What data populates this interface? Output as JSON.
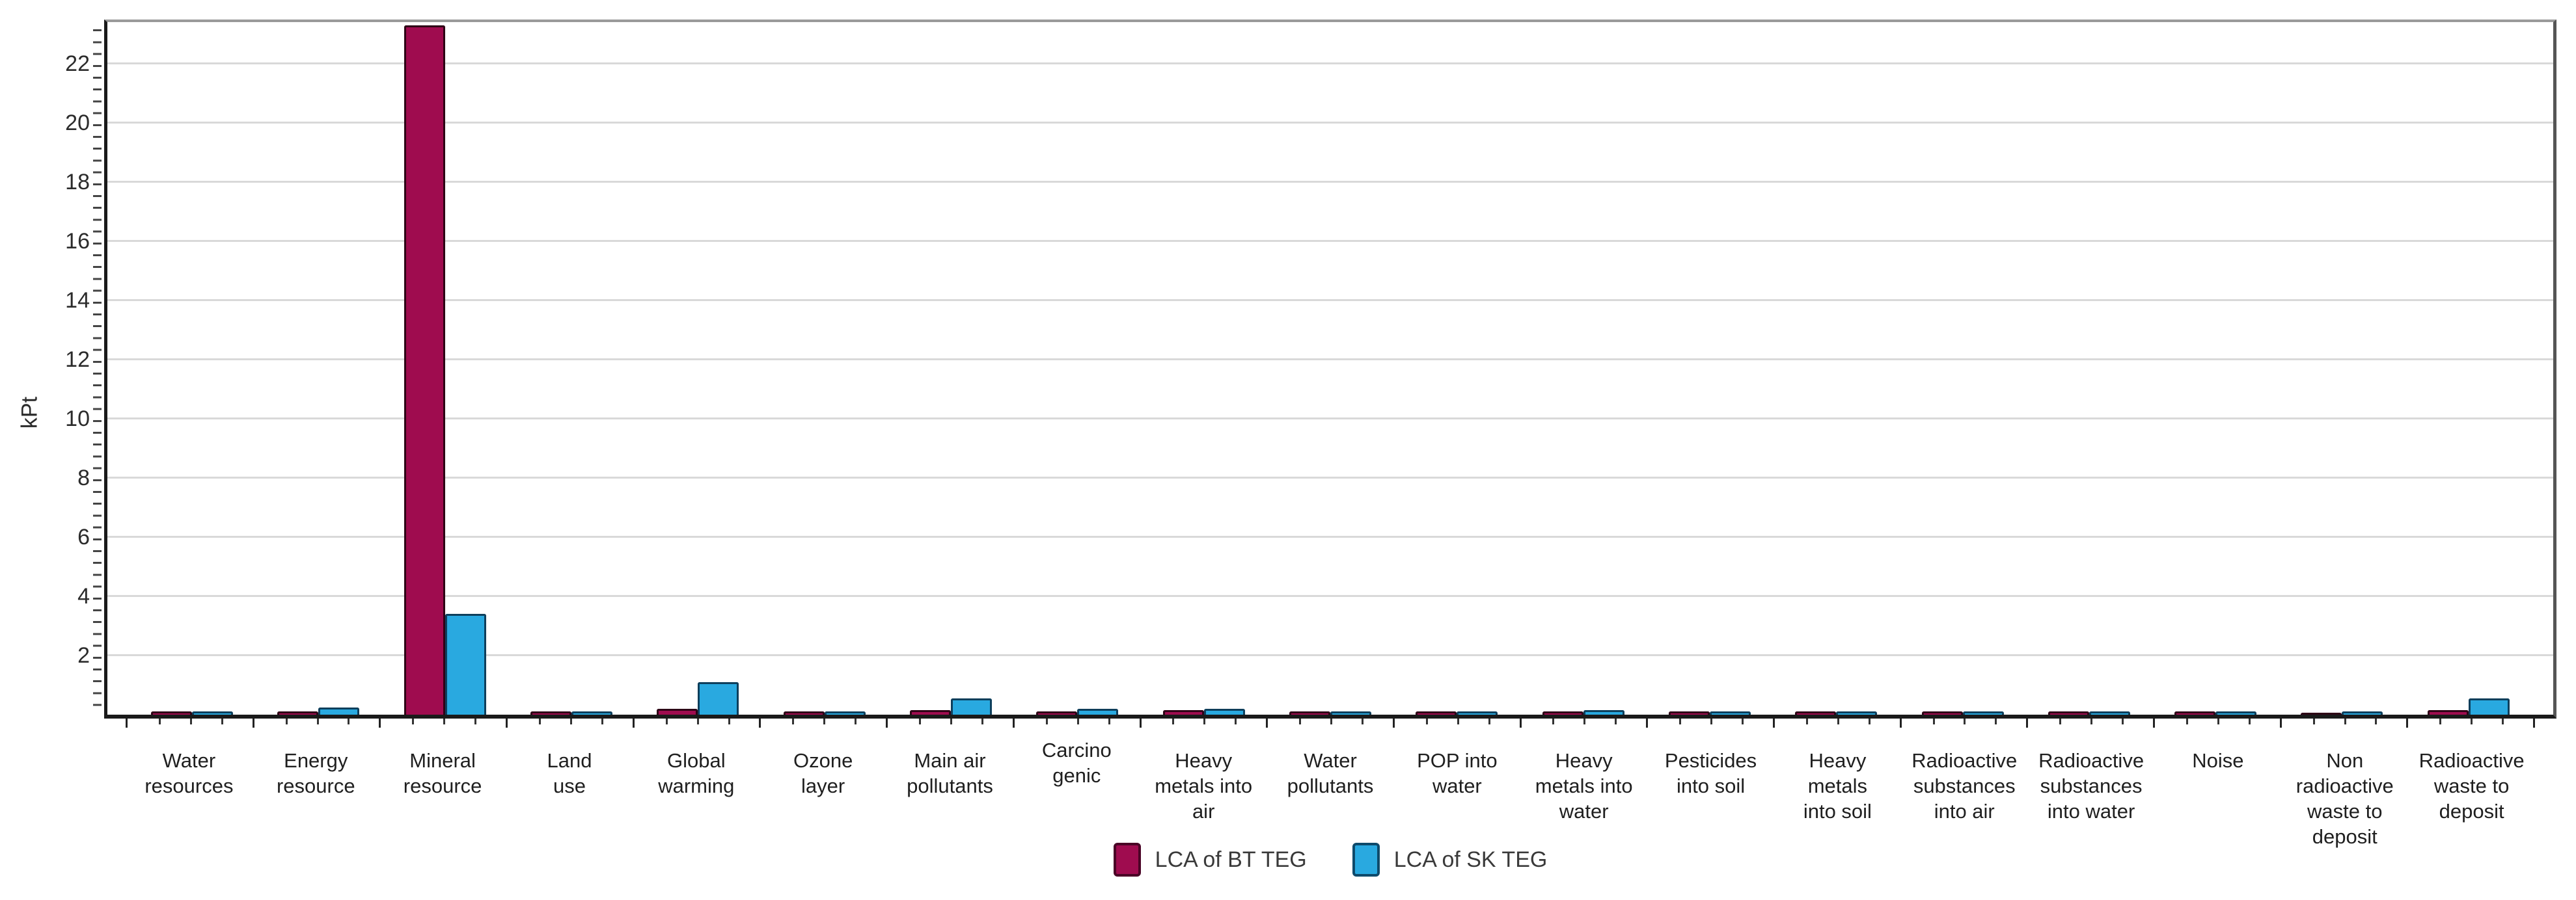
{
  "chart_data": {
    "type": "bar",
    "title": "",
    "xlabel": "",
    "ylabel": "kPt",
    "ylim": [
      0,
      23.4
    ],
    "y_ticks": [
      2,
      4,
      6,
      8,
      10,
      12,
      14,
      16,
      18,
      20,
      22
    ],
    "grid": true,
    "legend_position": "bottom-center",
    "categories": [
      "Water resources",
      "Energy resource",
      "Mineral resource",
      "Land use",
      "Global warming",
      "Ozone layer",
      "Main air pollutants",
      "Carcino genic",
      "Heavy metals into air",
      "Water pollutants",
      "POP into water",
      "Heavy metals into water",
      "Pesticides into soil",
      "Heavy metals into soil",
      "Radioactive substances into air",
      "Radioactive substances into water",
      "Noise",
      "Non radioactive waste to deposit",
      "Radioactive waste to deposit"
    ],
    "category_label_lines": [
      [
        "Water",
        "resources"
      ],
      [
        "Energy",
        "resource"
      ],
      [
        "Mineral",
        "resource"
      ],
      [
        "Land",
        "use"
      ],
      [
        "Global",
        "warming"
      ],
      [
        "Ozone",
        "layer"
      ],
      [
        "Main air",
        "pollutants"
      ],
      [
        "Carcino",
        "genic"
      ],
      [
        "Heavy",
        "metals into",
        "air"
      ],
      [
        "Water",
        "pollutants"
      ],
      [
        "POP into",
        "water"
      ],
      [
        "Heavy",
        "metals into",
        "water"
      ],
      [
        "Pesticides",
        "into soil"
      ],
      [
        "Heavy",
        "metals",
        "into soil"
      ],
      [
        "Radioactive",
        "substances",
        "into air"
      ],
      [
        "Radioactive",
        "substances",
        "into water"
      ],
      [
        "Noise"
      ],
      [
        "Non",
        "radioactive",
        "waste to",
        "deposit"
      ],
      [
        "Radioactive",
        "waste to",
        "deposit"
      ]
    ],
    "raised_label_index": 7,
    "series": [
      {
        "name": "LCA of BT TEG",
        "color": "#9F0C4F",
        "border_color": "#2e0316",
        "values": [
          0.1,
          0.1,
          23.3,
          0.1,
          0.2,
          0.1,
          0.15,
          0.1,
          0.15,
          0.1,
          0.1,
          0.1,
          0.1,
          0.1,
          0.1,
          0.1,
          0.1,
          0.05,
          0.15
        ]
      },
      {
        "name": "LCA of SK TEG",
        "color": "#29A9E0",
        "border_color": "#0e3f5c",
        "values": [
          0.1,
          0.25,
          3.4,
          0.1,
          1.1,
          0.1,
          0.55,
          0.2,
          0.2,
          0.1,
          0.1,
          0.15,
          0.1,
          0.1,
          0.1,
          0.1,
          0.1,
          0.1,
          0.55
        ]
      }
    ],
    "colors": {
      "gridline": "#d9d9d9",
      "axis_left_bottom": "#1a1a1a",
      "frame_top": "#9a9a9a",
      "frame_right": "#555555",
      "tick": "#333333",
      "text": "#262626"
    }
  }
}
